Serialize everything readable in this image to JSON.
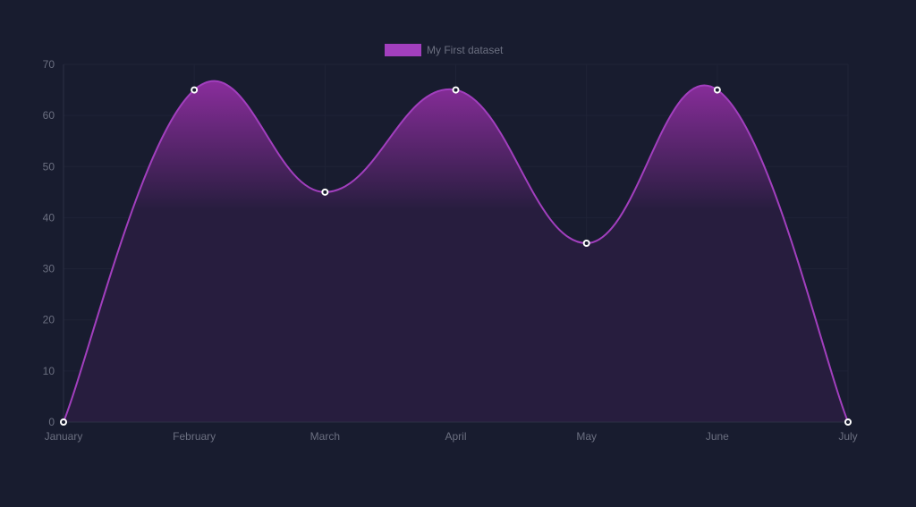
{
  "legend": {
    "label": "My First dataset"
  },
  "colors": {
    "background": "#181c2f",
    "line": "#a23fbe",
    "fill_top": "#8a2d9c",
    "fill_bottom": "#271d3e",
    "grid": "#1f2337",
    "axis": "#2c3044",
    "tick_text": "#6b6f80",
    "point_fill": "#181c2f",
    "point_stroke": "#ffffff"
  },
  "chart_data": {
    "type": "area",
    "categories": [
      "January",
      "February",
      "March",
      "April",
      "May",
      "June",
      "July"
    ],
    "series": [
      {
        "name": "My First dataset",
        "values": [
          0,
          65,
          45,
          65,
          35,
          65,
          0
        ]
      }
    ],
    "title": "",
    "xlabel": "",
    "ylabel": "",
    "ylim": [
      0,
      70
    ],
    "yticks": [
      0,
      10,
      20,
      30,
      40,
      50,
      60,
      70
    ],
    "grid": true,
    "legend": "top-center",
    "curve": "smooth"
  }
}
